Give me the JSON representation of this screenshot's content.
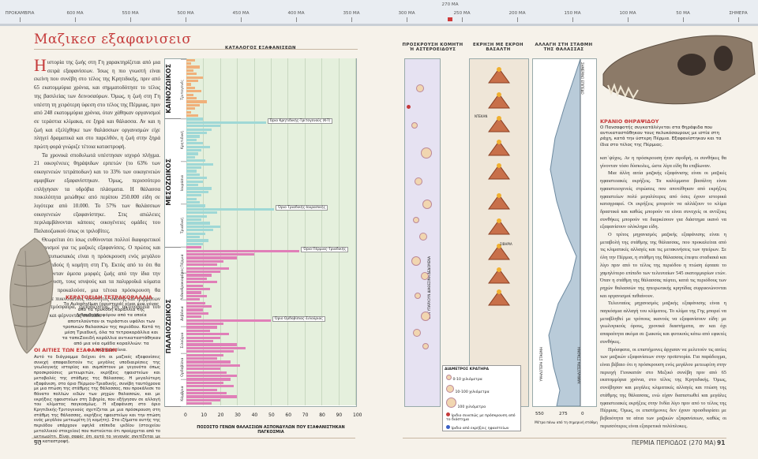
{
  "timeline": {
    "top_label": "270 MA",
    "labels": [
      "ΠΡΟΚΑΜΒΡΙΑ",
      "600 MA",
      "550 MA",
      "500 MA",
      "450 MA",
      "400 MA",
      "350 MA",
      "300 MA",
      "250 MA",
      "200 MA",
      "150 MA",
      "100 MA",
      "50 MA",
      "ΣΗΜΕΡΑ"
    ]
  },
  "page": {
    "title": "Μαζικεσ εξαφανισεισ",
    "left_page_number": "90",
    "right_footer": "ΠΕΡΜΙΑ ΠΕΡΙΟΔΟΣ (270 MA)",
    "right_page_number": "91"
  },
  "intro_text": {
    "dropcap": "Η",
    "first": "ιστορία της ζωής στη Γη χαρακτηρίζεται από μια σειρά εξαφανίσεων. Ίσως η πιο γνωστή είναι εκείνη που συνέβη στο τέλος της Κρητιδικής, πριν από 65 εκατομμύρια χρόνια, και σημματοδότησε το τέλος της βασιλείας των δεινοσαύρων. Όμως, η ζωή στη Γη υπέστη τη χειρότερη ύφεση στο τέλος της Πέρμιας, πριν από 248 εκατομμύρια χρόνια, όταν χάθηκαν οργανισμοί σε τεράστια κλίμακα, σε ξηρά και θάλασσα. Αν και η ζωή και εξελίχθηκε των θαλάσσιων οργανισμών είχε πληγεί δραματικά και στο παρελθόν, η ζωή στην ξηρά πρώτη φορά γνώριζε τέτοια καταστροφή.",
    "second": "Τα χρονικά σποδυλωτά υπέστησαν ισχυρό πλήγμα. 21 οικογένειες θηράψιδων ερπετών (το 63% των οικογενειών τετράποδων) και το 33% των οικογενειών αμφιβίων εξαφανίστηκαν. Όμως, περισσότερο επλήγησαν τα υδρόβια πλάσματα. Η θάλασσα ποικιλότητα μειώθηκε από περίπου 250.000 είδη σε λιγότερα από 10.000. Το 57% των θαλάσσιων οικογενειών εξαφανίστηκε. Στις απώλειες περιλαμβάνονται κάποιες οικογένειες ομάδες του Παλαιοζωικού όπως οι τριλοβίτες.",
    "third": "Θεωρείται ότι ίσως ευθύνονται πολλοί διαφορετικοί μηχανισμοί για τις μαζικές εξαφανίσεις. Ο πρώτος και πιο εντυπωσιακός είναι η πρόσκρουση ενός μεγάλου αστεροειδούς ή κομήτη στη Γη. Εκτός από το ότι θα σκοτώνονταν άμεσα μορφές ζωής από την ίδια την πρόσκρουση, τους ισυψούς και τα παλιρροϊκά κύματα που θα προκαλούσε, μια τέτοια πρόσκρουση θα εκτόξευε πυκνότατους ποσότητες σκόνης και τριμμάτων στην ατμόσφαιρα, εμποδίζοντας την ακτινοβολία του Ήλιου και φέρνοντας σκοτάδι."
  },
  "fossil_caption": {
    "heading": "ΚΕΡΑΤΟΕΙΔΗ ΤΕΤΡΑΚΟΡΑΛΛΙΑ",
    "body": "Το Aulophyllum (αριστερά) είναι ένα γένος από τα τρυκοδή κοράλλια της Λιθανθρακοφόρου από τα οποία αποτελούνταν οι τεράστιοι υφάλοι των τροπικών θαλασσών της περιόδου. Κατά τη μέση Τριαδική, όλα τα τετρακοράλλια και τα ταπεΖοειδή κοράλλια αντικαταστάθηκαν από μια νέα ομάδα κοραλλιών: τα σκληρακτίνια."
  },
  "causes": {
    "heading": "ΟΙ ΑΙΤΙΕΣ ΤΩΝ ΕΞΑΦΑΝΙΣΕΩΝ",
    "body": "Αυτό το διάγραμμα δείχνει ότι οι μαζικές εξαφανίσεις συνεχή απαφαιδοτούν τις μεγάλες υποδιαιρέσεις της γεωλογικής ιστορίας και συμπίπτουν με γεγονότα όπως προσκρούσεις μετεωριτών, εκρήξεις ηφαιστείων και μεταβολές της στάθμης της θάλασσας. Η μεγαλύτερη εξαφάνιση, στο όριο Πέρμιου-Τριαδικής, συνέβη ταυτόχρονα με μια πτώση της στάθμης της θάλασσας, που προκάλεσε το θάνατο πολλών ειδών των ρηχών θαλασσών, και με εκρήξεις ηφαιστείων στη Σιβηρία, που εξήγησαν σε αλλαγή του κλίματος παγκοσμίως. Η εξαφάνιση στο όριο Κρητιδικής-Τριτογενούς σχετίζεται με μια πρόσκρουση στη στάθμη της θάλασσας, εκρήξεις ηφαιστείων και την πτώση ενός μεγάλου μετεωρίτη (ή κομήτη). Στα ιζήματα αυτής της περιόδου υπάρχουν υψηλά επίπεδα ιριδίου (στοιχείου μεταλλικού στοιχείου) που πιστεύεται ότι προέρχεται από το μετεωρίτη. Είναι σαφές ότι αυτό το γεγονός σχετίζεται με την καταστροφή."
  },
  "chart_headers": {
    "catalog": "ΚΑΤΑΛΟΓΟΣ ΕΞΑΦΑΝΙΣΕΩΝ",
    "impact": "ΠΡΟΣΚΡΟΥΣΗ ΚΟΜΗΤΗ Ή ΑΣΤΕΡΟΕΙΔΟΥΣ",
    "volcano": "ΕΚΡΗΞΗ ΜΕ ΕΚΡΟΗ ΒΑΣΑΛΤΗ",
    "sea": "ΑΛΛΑΓΗ ΣΤΗ ΣΤΑΘΜΗ ΤΗΣ ΘΑΛΑΣΣΑΣ"
  },
  "eras": [
    {
      "name": "ΚΑΙΝΟΖΩΙΚΟΣ",
      "periods": [
        "Τριτογενές"
      ]
    },
    {
      "name": "ΜΕΣΟΖΩΙΚΟΣ",
      "periods": [
        "Κρητιδική",
        "Ιουράσια",
        "Τριαδική"
      ]
    },
    {
      "name": "ΠΑΛΑΙΟΖΩΙΚΟΣ",
      "periods": [
        "Πέρμια",
        "Λιθανθρακοφόρος",
        "Δεβόνια",
        "Σιλούρια",
        "Ορδοβίσια",
        "Κάμβρια"
      ]
    }
  ],
  "chart_data": {
    "type": "bar",
    "xlabel": "ΠΟΣΟΣΤΟ ΓΕΝΩΝ ΘΑΛΑΣΣΙΩΝ ΑΣΠΟΝΔΥΛΩΝ ΠΟΥ ΕΞΑΦΑΝΙΣΤΗΚΑΝ ΠΑΓΚΟΣΜΙΑ",
    "xlim": [
      0,
      100
    ],
    "xticks": [
      "0",
      "10",
      "20",
      "30",
      "40",
      "50",
      "60",
      "70",
      "80",
      "90",
      "100"
    ],
    "events": [
      {
        "label": "Όριο Κρητιδικής-Τριτογενούς (K-T)",
        "value": 47
      },
      {
        "label": "Όριο Τριαδικής-Ιουρασικής",
        "value": 52
      },
      {
        "label": "Όριο Πέρμιας-Τριαδικής",
        "value": 67
      },
      {
        "label": "Όριο Ορδοβίσιας-Σιλούριας",
        "value": 50
      }
    ],
    "values": [
      5,
      3,
      8,
      4,
      6,
      10,
      7,
      3,
      5,
      9,
      4,
      6,
      12,
      8,
      5,
      3,
      7,
      10,
      47,
      20,
      15,
      12,
      8,
      6,
      10,
      14,
      9,
      7,
      5,
      11,
      16,
      9,
      6,
      8,
      12,
      10,
      7,
      15,
      13,
      9,
      6,
      8,
      11,
      52,
      18,
      12,
      9,
      14,
      20,
      16,
      11,
      8,
      13,
      10,
      9,
      67,
      40,
      30,
      22,
      18,
      25,
      20,
      15,
      12,
      18,
      10,
      14,
      9,
      12,
      8,
      11,
      15,
      10,
      13,
      9,
      50,
      22,
      18,
      14,
      25,
      20,
      16,
      30,
      35,
      28,
      22,
      18,
      26,
      32,
      20,
      24,
      30,
      26,
      22,
      28,
      18,
      24,
      30,
      20,
      15
    ]
  },
  "volcano_labels": [
    "ΝΤΕΚΑΝ",
    "ΣΙΒΗΡΙΑ"
  ],
  "sea_labels": {
    "current": "ΣΗΜΕΡΙΝΟ ΕΠΙΠΕΔΟ",
    "high": "ΥΨΗΛΟΤΕΡΗ ΣΤΑΘΜΗ",
    "low": "ΧΑΜΗΛΟΤΕΡΗ ΣΤΑΘΜΗ",
    "ticks": [
      "550",
      "275",
      "0"
    ],
    "axis": "Μέτρα πάνω από τη σημερινή στάθμη"
  },
  "impact_axis_label": "ΔΕΝ ΥΠΑΡΧΟΥΝ ΔΙΑΘΕΣΙΜΑ ΔΕΔΟΜΕΝΑ",
  "legend": {
    "title": "ΔΙΑΜΕΤΡΟΣ ΚΡΑΤΗΡΑ",
    "items": [
      "0-10 χιλιόμετρα",
      "10-100 χιλιόμετρα",
      "100 χιλιόμετρα"
    ],
    "notes": [
      "Ιριδιο συνεπώς με πρόσκρουση από το διάστημα",
      "Ιριδιο από εκρήξεις ηφαιστείων"
    ]
  },
  "skull_caption": {
    "heading": "ΚΡΑΝΙΟ ΘΗΡΑΨΙΔΟΥ",
    "body": "Ο Πανσαφοτής συγκατάλέγεται στα θηράψιδα που αντικαταστάθηκαν τους πελυκόσαυρους με ιστία στη ράχη, κατά την ύστερη Πέρμια. Εξαφανίστηκαν και τα ίδια στο τέλος της Πέρμιας."
  },
  "right_text": {
    "p1": "κατ᾽ψύχος. Αν η πρόσκρουση ήταν σφοδρή, οι συνθήκες θα γίνονταν τόσο δύσκολες, ώστε λίγα είδη θα επιβίωναν.",
    "p2": "Μια άλλη αιτία μαζικής εξαφάνισης είναι οι μαζικές ηφαιστειακές εκρήξεις. Τα καλύμματα βασάλτη είναι ηφαιστειογενείς στρώσεις που αποτέθηκαν από εκρήξεις ηφαιστείων πολύ μεγαλύτερες από όσες έχουν ιστορικά καταγραφεί. Οι εκρήξεις μπορούν να αλλάξουν το κλίμα δραστικά και καθώς μπορούν να είναι συνεχείς οι αντίξοες συνθήκες μπορούν να διαρκέσουν για διάστημα ικανό να εξαφανίσουν ολόκληρα είδη.",
    "p3": "Ο τρίτος μηχανισμός μαζικής εξαφάνισης είναι η μεταβολή της στάθμης της θάλασσας, που προκαλείται από τις κλιματικές αλλαγές και τις μετακινήσεις των ηπείρων. Σε όλη την Πέρμια, η στάθμη της θάλασσας έπεφτε σταδιακά και λίγο πριν από το τέλος της περιόδου η πτώση έφτασε το χαμηλότερο επίπεδο των τελευταίων 545 εκατομμυρίων ετών. Όταν η στάθμη της θάλασσας πέφτει, κατά τις περιόδους των ρηχών θαλασσών της ηπειρωτικής κρηπίδας συρρικνώνονται και οργανισμοί πεθαίνουν.",
    "p4": "Τελευταίος μηχανισμός μαζικής εξαφάνισης είναι η παγκόσμια αλλαγή του κλίματος. Το κλίμα της Γης μπορεί να μεταβληθεί με τρόπους ικανούς να εξαφανίσουν είδη: με γεωλογικούς όρους, χρονικά διαστήματα, αν και όχι απαραίτητα ακόμα σε ζωικούς και φυτικούς κάτω από εφικτές συνθήκες.",
    "p5": "Πρόσφατα, οι επιστήμονες άρχισαν να μελετούν τις αιτίες των μαζικών εξαφανίσεων στην προϊστορία. Για παράδειγμα, είναι βέβαιο ότι η πρόσκρουση ενός μεγάλου μετεωρίτη στην περιοχή Γιουκατάν στο Μεξικό συνέβη πριν από 65 εκατομμύρια χρόνια, στο τέλος της Κρητιδικής. Όμως, συνέβησαν και μεγάλες κλιματικές αλλαγές και πτώση της στάθμης της θάλασσας, ενώ είχαν διαπιστωθεί και μεγάλες ηφαιστειακές εκρήξεις στην Ινδία λίγο πριν από το τέλος της Πέρμιας. Όμως, οι επιστήμονες δεν έχουν προσδιορίσει με βεβαιότητα τα αίτια των μαζικών εξαφανίσεων, καθώς οι περισσότερες είναι εξαιρετικά πολύπλοκες."
  },
  "colors": {
    "accent": "#c53a3a",
    "bar_caino": "#f0b07a",
    "bar_meso": "#9fd8d6",
    "bar_paleo": "#e07fb8",
    "plot_bg": "#e5f0dd"
  }
}
